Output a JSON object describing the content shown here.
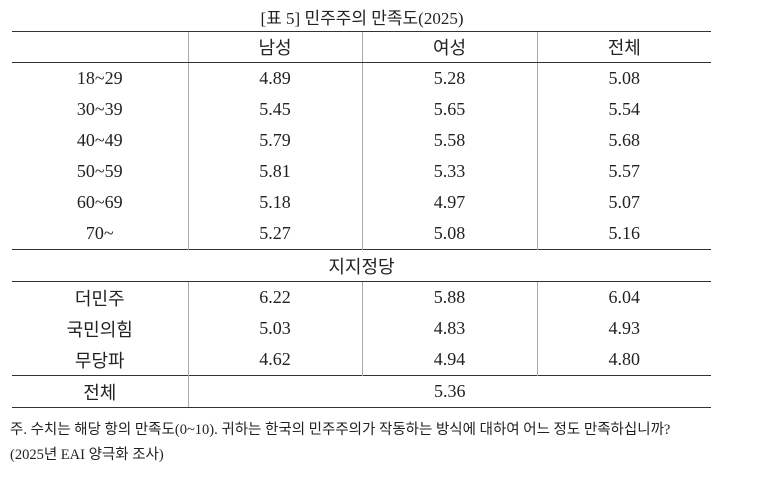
{
  "title": "[표 5] 민주주의 만족도(2025)",
  "table": {
    "columns": [
      "남성",
      "여성",
      "전체"
    ],
    "age_rows": [
      {
        "label": "18~29",
        "values": [
          "4.89",
          "5.28",
          "5.08"
        ]
      },
      {
        "label": "30~39",
        "values": [
          "5.45",
          "5.65",
          "5.54"
        ]
      },
      {
        "label": "40~49",
        "values": [
          "5.79",
          "5.58",
          "5.68"
        ]
      },
      {
        "label": "50~59",
        "values": [
          "5.81",
          "5.33",
          "5.57"
        ]
      },
      {
        "label": "60~69",
        "values": [
          "5.18",
          "4.97",
          "5.07"
        ]
      },
      {
        "label": "70~",
        "values": [
          "5.27",
          "5.08",
          "5.16"
        ]
      }
    ],
    "section": "지지정당",
    "party_rows": [
      {
        "label": "더민주",
        "values": [
          "6.22",
          "5.88",
          "6.04"
        ]
      },
      {
        "label": "국민의힘",
        "values": [
          "5.03",
          "4.83",
          "4.93"
        ]
      },
      {
        "label": "무당파",
        "values": [
          "4.62",
          "4.94",
          "4.80"
        ]
      }
    ],
    "total": {
      "label": "전체",
      "value": "5.36"
    }
  },
  "notes": [
    "주. 수치는 해당 항의 만족도(0~10). 귀하는 한국의 민주주의가 작동하는 방식에 대하여 어느 정도 만족하십니까?",
    "(2025년 EAI 양극화 조사)"
  ]
}
